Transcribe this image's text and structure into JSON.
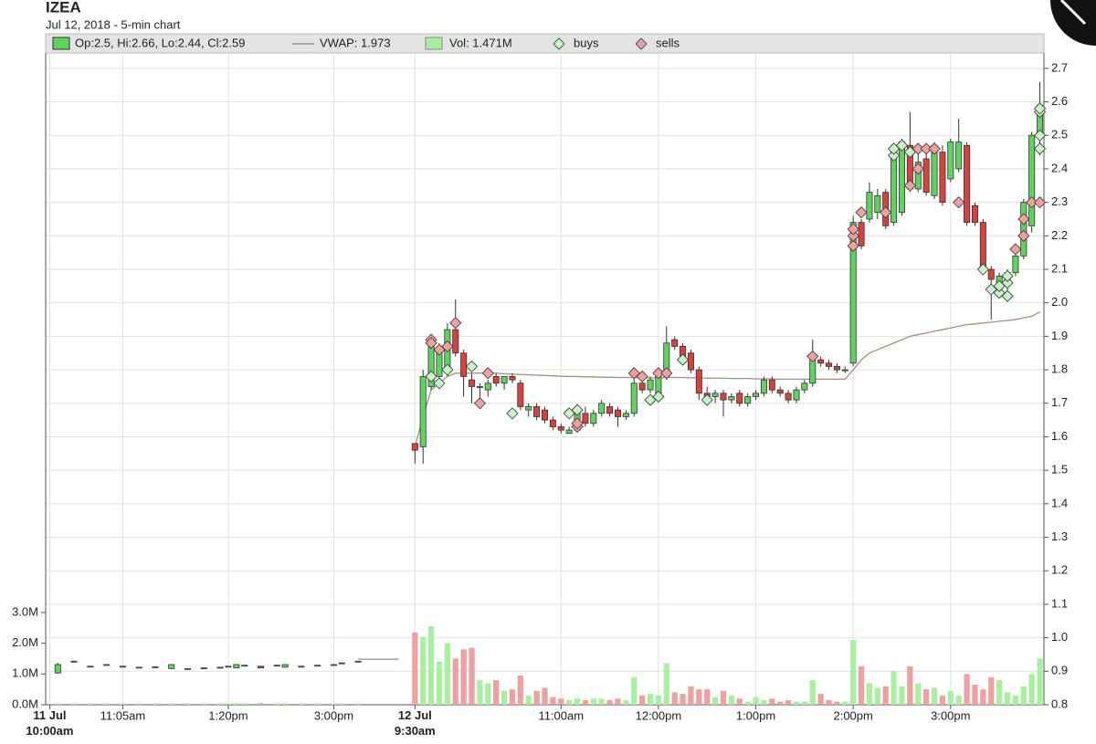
{
  "chart_data": {
    "type": "candlestick",
    "title": "IZEA",
    "subtitle": "Jul 12, 2018 - 5-min chart",
    "legend": {
      "ohlc": "Op:2.5, Hi:2.66, Lo:2.44, Cl:2.59",
      "vwap": "VWAP: 1.973",
      "volume": "Vol: 1.471M"
    },
    "up_color": "#5fd35f",
    "down_color": "#d9413f",
    "volume_up_color": "#a8f0a0",
    "volume_down_color": "#f0a0a0",
    "vwap_color": "#b08a78",
    "grid": true,
    "ylim": [
      0.8,
      2.746
    ],
    "yticks": [
      0.8,
      0.9,
      {
        "value": 1,
        "label": "1.0"
      },
      1.1,
      1.2,
      1.3,
      1.4,
      1.5,
      1.6,
      1.7,
      1.8,
      1.9,
      {
        "value": 2,
        "label": "2.0"
      },
      2.1,
      2.2,
      2.3,
      2.4,
      2.5,
      2.6,
      2.7
    ],
    "y2lim": [
      0,
      21.19
    ],
    "y2ticks": [
      {
        "value": 0,
        "label": "0.0M"
      },
      {
        "value": 1,
        "label": "1.0M"
      },
      {
        "value": 2,
        "label": "2.0M"
      },
      {
        "value": 3,
        "label": "3.0M"
      }
    ],
    "xlim": [
      -0.5,
      122.5
    ],
    "xticks": [
      {
        "value": 0,
        "label": "11 Jul\n10:00am"
      },
      {
        "value": 9,
        "label": "11:05am"
      },
      {
        "value": 22,
        "label": "1:20pm"
      },
      {
        "value": 35,
        "label": "3:00pm"
      },
      {
        "value": 45,
        "label": "12 Jul\n9:30am"
      },
      {
        "value": 63,
        "label": "11:00am"
      },
      {
        "value": 75,
        "label": "12:00pm"
      },
      {
        "value": 87,
        "label": "1:00pm"
      },
      {
        "value": 99,
        "label": "2:00pm"
      },
      {
        "value": 111,
        "label": "3:00pm"
      }
    ],
    "candles": [
      null,
      [
        0.895,
        0.925,
        0.893,
        0.92
      ],
      null,
      [
        0.93,
        0.932,
        0.93,
        0.93
      ],
      null,
      [
        0.915,
        0.916,
        0.914,
        0.915
      ],
      null,
      [
        0.92,
        0.921,
        0.919,
        0.92
      ],
      null,
      [
        0.915,
        0.916,
        0.914,
        0.915
      ],
      null,
      [
        0.912,
        0.913,
        0.911,
        0.912
      ],
      null,
      [
        0.913,
        0.914,
        0.912,
        0.913
      ],
      null,
      [
        0.908,
        0.92,
        0.908,
        0.92
      ],
      null,
      [
        0.908,
        0.909,
        0.907,
        0.908
      ],
      null,
      [
        0.91,
        0.911,
        0.909,
        0.91
      ],
      null,
      [
        0.912,
        0.913,
        0.911,
        0.912
      ],
      [
        0.915,
        0.916,
        0.914,
        0.915
      ],
      [
        0.91,
        0.92,
        0.91,
        0.92
      ],
      [
        0.918,
        0.919,
        0.917,
        0.918
      ],
      null,
      [
        0.915,
        0.916,
        0.91,
        0.91
      ],
      null,
      [
        0.918,
        0.919,
        0.917,
        0.918
      ],
      [
        0.912,
        0.92,
        0.912,
        0.92
      ],
      null,
      [
        0.915,
        0.916,
        0.914,
        0.915
      ],
      null,
      [
        0.918,
        0.919,
        0.917,
        0.918
      ],
      null,
      [
        0.92,
        0.921,
        0.919,
        0.92
      ],
      [
        0.925,
        0.926,
        0.924,
        0.925
      ],
      null,
      [
        0.93,
        0.931,
        0.929,
        0.93
      ],
      null,
      null,
      null,
      null,
      null,
      null,
      [
        1.58,
        1.58,
        1.52,
        1.56
      ],
      [
        1.57,
        1.8,
        1.52,
        1.78
      ],
      [
        1.75,
        1.9,
        1.74,
        1.88
      ],
      [
        1.78,
        1.88,
        1.75,
        1.86
      ],
      [
        1.8,
        1.94,
        1.78,
        1.92
      ],
      [
        1.92,
        2.01,
        1.84,
        1.85
      ],
      [
        1.85,
        1.86,
        1.72,
        1.78
      ],
      [
        1.77,
        1.79,
        1.7,
        1.75
      ],
      [
        1.75,
        1.76,
        1.7,
        1.75
      ],
      [
        1.74,
        1.77,
        1.72,
        1.76
      ],
      [
        1.78,
        1.79,
        1.75,
        1.76
      ],
      [
        1.76,
        1.78,
        1.74,
        1.78
      ],
      [
        1.78,
        1.79,
        1.76,
        1.77
      ],
      [
        1.76,
        1.77,
        1.68,
        1.69
      ],
      [
        1.68,
        1.7,
        1.66,
        1.69
      ],
      [
        1.69,
        1.7,
        1.65,
        1.66
      ],
      [
        1.68,
        1.69,
        1.64,
        1.65
      ],
      [
        1.65,
        1.66,
        1.62,
        1.63
      ],
      [
        1.63,
        1.64,
        1.61,
        1.62
      ],
      [
        1.61,
        1.63,
        1.61,
        1.62
      ],
      [
        1.62,
        1.68,
        1.62,
        1.67
      ],
      [
        1.67,
        1.69,
        1.63,
        1.64
      ],
      [
        1.64,
        1.68,
        1.63,
        1.67
      ],
      [
        1.67,
        1.71,
        1.66,
        1.7
      ],
      [
        1.69,
        1.7,
        1.66,
        1.67
      ],
      [
        1.68,
        1.69,
        1.63,
        1.66
      ],
      [
        1.66,
        1.68,
        1.65,
        1.67
      ],
      [
        1.67,
        1.78,
        1.66,
        1.76
      ],
      [
        1.76,
        1.78,
        1.73,
        1.74
      ],
      [
        1.74,
        1.78,
        1.73,
        1.77
      ],
      [
        1.73,
        1.8,
        1.72,
        1.79
      ],
      [
        1.78,
        1.93,
        1.77,
        1.88
      ],
      [
        1.89,
        1.9,
        1.86,
        1.87
      ],
      [
        1.87,
        1.88,
        1.83,
        1.84
      ],
      [
        1.85,
        1.86,
        1.79,
        1.8
      ],
      [
        1.8,
        1.81,
        1.71,
        1.73
      ],
      [
        1.73,
        1.75,
        1.7,
        1.72
      ],
      [
        1.72,
        1.74,
        1.7,
        1.73
      ],
      [
        1.73,
        1.74,
        1.66,
        1.71
      ],
      [
        1.71,
        1.73,
        1.7,
        1.72
      ],
      [
        1.73,
        1.74,
        1.69,
        1.7
      ],
      [
        1.7,
        1.73,
        1.69,
        1.72
      ],
      [
        1.72,
        1.74,
        1.71,
        1.73
      ],
      [
        1.73,
        1.78,
        1.72,
        1.77
      ],
      [
        1.77,
        1.78,
        1.73,
        1.74
      ],
      [
        1.74,
        1.75,
        1.72,
        1.73
      ],
      [
        1.73,
        1.74,
        1.7,
        1.71
      ],
      [
        1.71,
        1.75,
        1.7,
        1.74
      ],
      [
        1.74,
        1.77,
        1.73,
        1.76
      ],
      [
        1.76,
        1.89,
        1.75,
        1.83
      ],
      [
        1.83,
        1.84,
        1.81,
        1.82
      ],
      [
        1.82,
        1.83,
        1.8,
        1.81
      ],
      [
        1.81,
        1.82,
        1.79,
        1.8
      ],
      [
        1.8,
        1.81,
        1.79,
        1.8
      ],
      [
        1.82,
        2.26,
        1.81,
        2.24
      ],
      [
        2.24,
        2.25,
        2.16,
        2.17
      ],
      [
        2.25,
        2.36,
        2.24,
        2.33
      ],
      [
        2.27,
        2.34,
        2.25,
        2.32
      ],
      [
        2.33,
        2.34,
        2.22,
        2.23
      ],
      [
        2.24,
        2.47,
        2.23,
        2.45
      ],
      [
        2.27,
        2.49,
        2.26,
        2.48
      ],
      [
        2.47,
        2.57,
        2.33,
        2.34
      ],
      [
        2.34,
        2.46,
        2.33,
        2.42
      ],
      [
        2.43,
        2.45,
        2.32,
        2.33
      ],
      [
        2.32,
        2.48,
        2.31,
        2.47
      ],
      [
        2.45,
        2.47,
        2.29,
        2.3
      ],
      [
        2.37,
        2.49,
        2.36,
        2.48
      ],
      [
        2.4,
        2.55,
        2.39,
        2.48
      ],
      [
        2.47,
        2.48,
        2.23,
        2.24
      ],
      [
        2.29,
        2.3,
        2.23,
        2.24
      ],
      [
        2.24,
        2.25,
        2.09,
        2.1
      ],
      [
        2.1,
        2.11,
        1.95,
        2.07
      ],
      [
        2.05,
        2.09,
        2.02,
        2.08
      ],
      [
        2.06,
        2.1,
        2.03,
        2.09
      ],
      [
        2.09,
        2.15,
        2.08,
        2.14
      ],
      [
        2.14,
        2.31,
        2.13,
        2.3
      ],
      [
        2.23,
        2.51,
        2.21,
        2.5
      ],
      [
        2.5,
        2.66,
        2.44,
        2.59
      ]
    ],
    "volume": [
      null,
      0.05,
      null,
      0.05,
      null,
      0.05,
      null,
      0.05,
      null,
      0.05,
      null,
      0.05,
      null,
      0.05,
      null,
      0.05,
      null,
      0.05,
      null,
      0.05,
      null,
      0.05,
      0.05,
      0.05,
      0.05,
      null,
      0.05,
      null,
      0.05,
      0.05,
      null,
      0.05,
      null,
      0.05,
      null,
      0.05,
      0.05,
      null,
      0.05,
      null,
      null,
      null,
      null,
      null,
      null,
      2.35,
      2.2,
      2.55,
      1.4,
      2.0,
      1.5,
      1.8,
      1.85,
      0.8,
      0.7,
      0.8,
      0.45,
      0.5,
      0.95,
      0.3,
      0.45,
      0.55,
      0.25,
      0.2,
      0.15,
      0.2,
      0.15,
      0.2,
      0.2,
      0.15,
      0.2,
      0.15,
      0.9,
      0.3,
      0.35,
      0.3,
      1.35,
      0.4,
      0.35,
      0.6,
      0.5,
      0.5,
      0.25,
      0.45,
      0.3,
      0.2,
      0.1,
      0.25,
      0.15,
      0.2,
      0.1,
      0.15,
      0.1,
      0.1,
      0.8,
      0.35,
      0.15,
      0.1,
      0.1,
      2.1,
      1.25,
      0.7,
      0.55,
      0.6,
      1.1,
      0.6,
      1.25,
      0.7,
      0.5,
      0.55,
      0.3,
      0.45,
      0.3,
      1.0,
      0.65,
      0.5,
      0.9,
      0.8,
      0.4,
      0.3,
      0.6,
      1.0,
      1.5
    ],
    "vwap": [
      null,
      null,
      null,
      null,
      null,
      null,
      null,
      null,
      null,
      null,
      null,
      null,
      null,
      null,
      null,
      null,
      null,
      null,
      null,
      null,
      null,
      null,
      null,
      null,
      null,
      null,
      null,
      null,
      null,
      null,
      null,
      null,
      null,
      null,
      null,
      null,
      null,
      null,
      0.936,
      0.936,
      0.936,
      0.936,
      0.936,
      0.936,
      null,
      1.57,
      1.66,
      1.74,
      1.76,
      1.78,
      1.79,
      1.79,
      1.79,
      1.79,
      1.79,
      1.79,
      1.788,
      1.787,
      1.786,
      1.785,
      1.784,
      1.783,
      1.782,
      1.781,
      1.78,
      1.78,
      1.779,
      1.779,
      1.778,
      1.778,
      1.777,
      1.777,
      1.777,
      1.776,
      1.776,
      1.776,
      1.777,
      1.777,
      1.777,
      1.776,
      1.776,
      1.775,
      1.775,
      1.775,
      1.774,
      1.774,
      1.774,
      1.773,
      1.773,
      1.773,
      1.772,
      1.772,
      1.772,
      1.772,
      1.772,
      1.772,
      1.772,
      1.772,
      1.772,
      1.8,
      1.83,
      1.85,
      1.86,
      1.87,
      1.88,
      1.89,
      1.9,
      1.905,
      1.91,
      1.915,
      1.92,
      1.925,
      1.93,
      1.935,
      1.937,
      1.94,
      1.942,
      1.945,
      1.947,
      1.95,
      1.955,
      1.96,
      1.973
    ],
    "buys": {
      "name": "buys",
      "color": "#c8f5c8",
      "x": [
        47,
        48,
        49,
        52,
        57,
        64,
        65,
        74,
        75,
        78,
        81,
        104,
        104,
        105,
        106,
        109,
        115,
        116,
        117,
        117,
        118,
        118,
        118,
        122,
        122,
        122,
        122
      ],
      "values": [
        1.78,
        1.76,
        1.8,
        1.81,
        1.67,
        1.67,
        1.68,
        1.71,
        1.72,
        1.83,
        1.71,
        2.44,
        2.46,
        2.47,
        2.45,
        2.46,
        2.1,
        2.04,
        2.03,
        2.05,
        2.02,
        2.06,
        2.08,
        2.46,
        2.5,
        2.57,
        2.58
      ]
    },
    "sells": {
      "name": "sells",
      "color": "#f0a0a0",
      "x": [
        47,
        47,
        48,
        49,
        50,
        53,
        54,
        65,
        65,
        72,
        73,
        75,
        76,
        94,
        99,
        99,
        99,
        100,
        103,
        106,
        107,
        107,
        108,
        109,
        112,
        119,
        120,
        120,
        121,
        122
      ],
      "values": [
        1.89,
        1.88,
        1.86,
        1.87,
        1.94,
        1.7,
        1.79,
        1.63,
        1.64,
        1.79,
        1.78,
        1.79,
        1.79,
        1.84,
        2.17,
        2.2,
        2.22,
        2.27,
        2.27,
        2.35,
        2.4,
        2.46,
        2.46,
        2.46,
        2.3,
        2.16,
        2.2,
        2.25,
        2.3,
        2.3
      ]
    }
  }
}
